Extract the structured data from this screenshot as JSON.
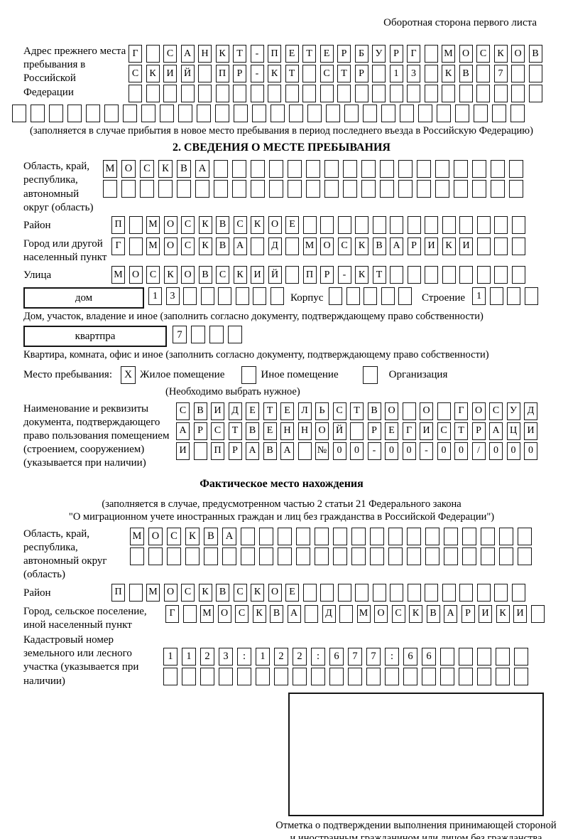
{
  "header": {
    "note": "Оборотная сторона первого листа"
  },
  "prev_address": {
    "label": "Адрес прежнего места пребывания в Российской Федерации",
    "rows": [
      "Г САНКТ-ПЕТЕРБУРГ МОСКОВ",
      "СКИЙ ПР-КТ СТР 13 КВ 7",
      "",
      ""
    ],
    "caption": "(заполняется в случае прибытия в новое место пребывания в период последнего въезда в Российскую Федерацию)"
  },
  "section2": {
    "title": "2. СВЕДЕНИЯ О МЕСТЕ ПРЕБЫВАНИЯ",
    "oblast": {
      "label": "Область, край, республика, автономный округ (область)",
      "rows": [
        "МОСКВА",
        ""
      ]
    },
    "raion": {
      "label": "Район",
      "value": "П МОСКВСКОЕ"
    },
    "gorod": {
      "label": "Город или другой населенный пункт",
      "value": "Г МОСКВА Д МОСКВАРИКИ"
    },
    "ulitsa": {
      "label": "Улица",
      "value": "МОСКОВСКИЙ ПР-КТ"
    },
    "dom": {
      "label": "дом",
      "value": "13"
    },
    "korpus": {
      "label": "Корпус",
      "value": ""
    },
    "stroenie": {
      "label": "Строение",
      "value": "1"
    },
    "dom_caption": "Дом, участок, владение и иное (заполнить согласно документу, подтверждающему право собственности)",
    "kvartira": {
      "label": "квартпра",
      "value": "7"
    },
    "kvartira_caption": "Квартира, комната, офис и иное (заполнить согласно документу, подтверждающему право собственности)",
    "mesto": {
      "label": "Место пребывания:",
      "options": [
        {
          "label": "Жилое помещение",
          "mark": "X"
        },
        {
          "label": "Иное помещение",
          "mark": ""
        },
        {
          "label": "Организация",
          "mark": ""
        }
      ],
      "caption": "(Необходимо выбрать нужное)"
    },
    "document": {
      "label": "Наименование и реквизиты документа, подтверждающего право пользования помещением (строением, сооружением) (указывается при наличии)",
      "rows": [
        "СВИДЕТЕЛЬСТВО О ГОСУД",
        "АРСТВЕННОЙ РЕГИСТРАЦИ",
        "И ПРАВА №00-00-00/000"
      ]
    }
  },
  "fact_location": {
    "title": "Фактическое место нахождения",
    "caption_line1": "(заполняется в случае, предусмотренном частью 2 статьи 21 Федерального закона",
    "caption_line2": "\"О миграционном учете иностранных граждан и лиц без гражданства в Российской Федерации\")",
    "oblast": {
      "label": "Область, край, республика, автономный округ (область)",
      "rows": [
        "МОСКВА",
        ""
      ]
    },
    "raion": {
      "label": "Район",
      "value": "П МОСКВСКОЕ"
    },
    "gorod": {
      "label": "Город, сельское поселение, иной населенный пункт",
      "value": "Г МОСКВА Д МОСКВАРИКИ"
    },
    "kadastr": {
      "label": "Кадастровый номер земельного или лесного участка (указывается при наличии)",
      "rows": [
        "1123:122:677:66",
        ""
      ]
    },
    "stamp_caption": "Отметка о подтверждении выполнения принимающей стороной и иностранным гражданином или лицом без гражданства действий, необходимых для его постановки на учет по месту пребывания"
  }
}
